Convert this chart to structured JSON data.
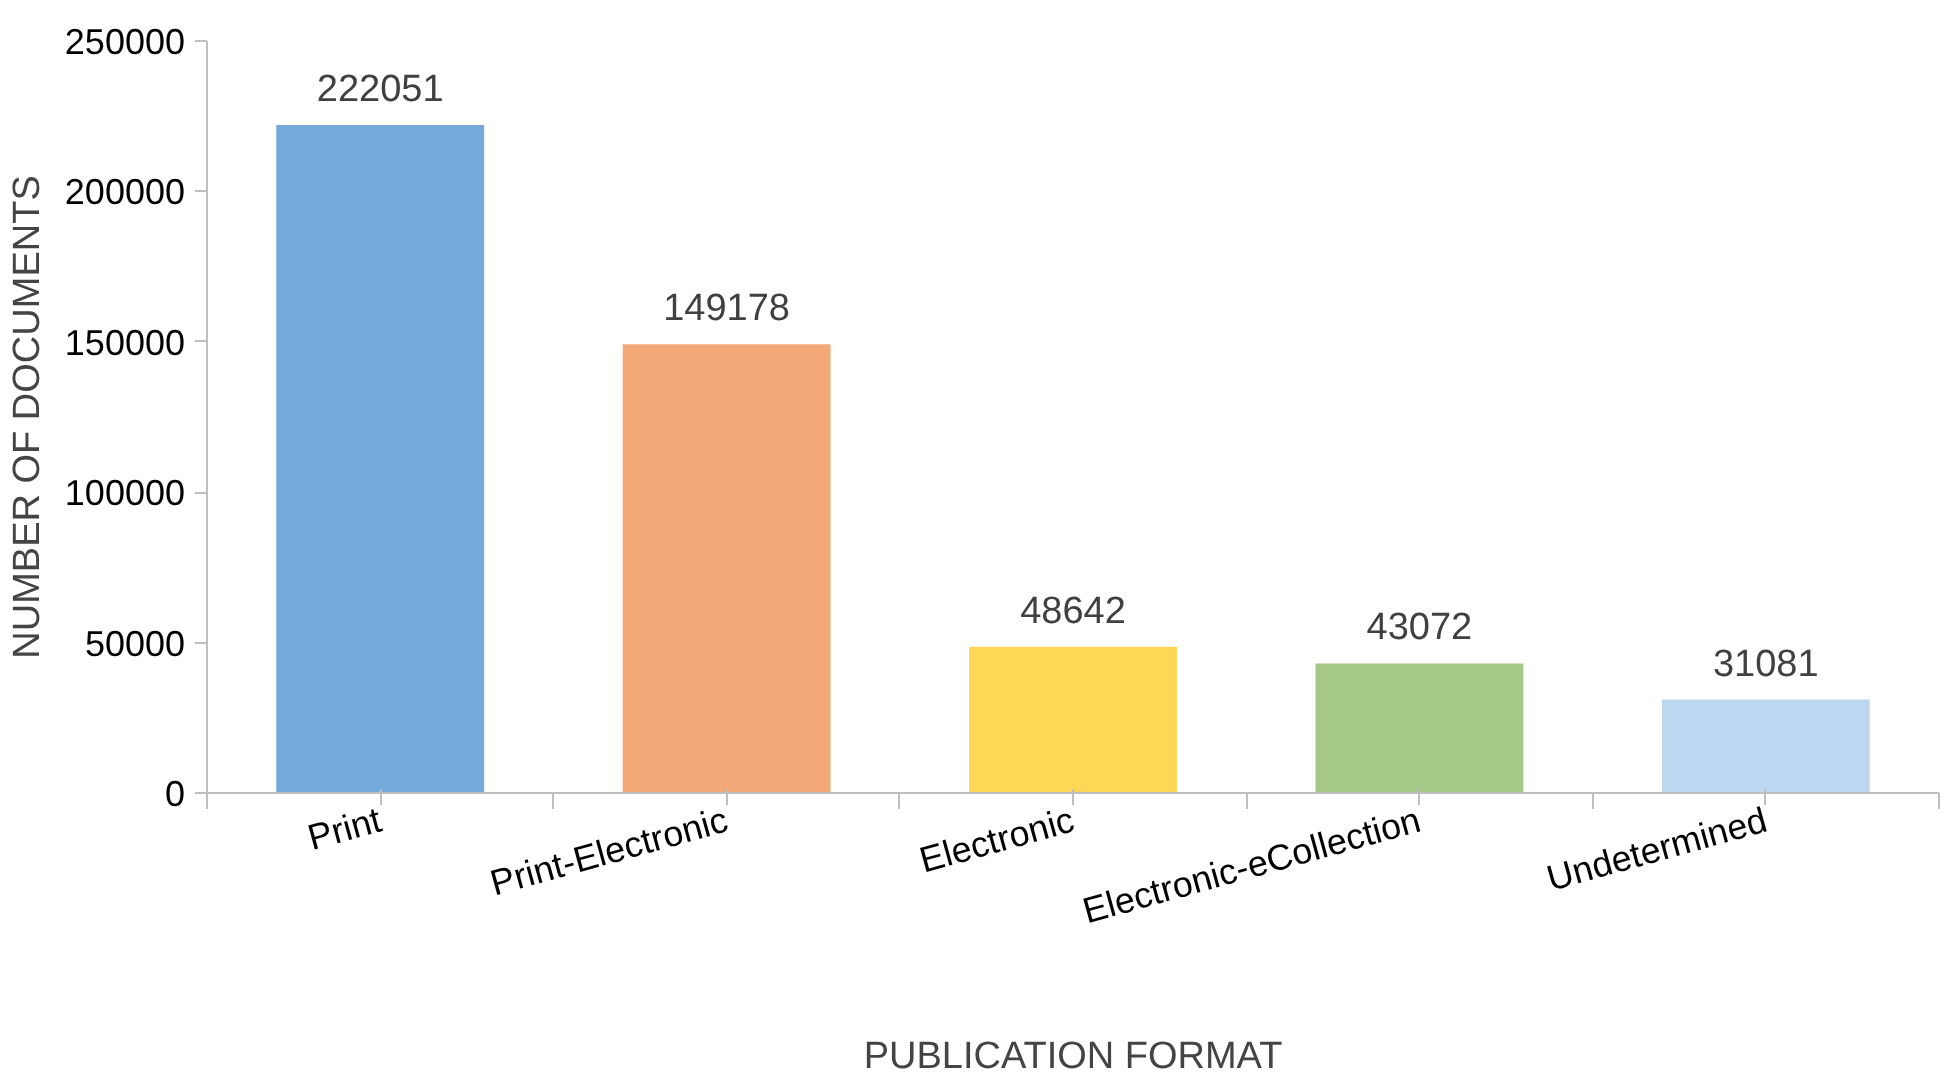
{
  "chart_data": {
    "type": "bar",
    "xlabel": "PUBLICATION FORMAT",
    "ylabel": "NUMBER OF DOCUMENTS",
    "categories": [
      "Print",
      "Print-Electronic",
      "Electronic",
      "Electronic-eCollection",
      "Undetermined"
    ],
    "values": [
      222051,
      149178,
      48642,
      43072,
      31081
    ],
    "colors": [
      "#74a9db",
      "#f3a977",
      "#ffd757",
      "#a5c986",
      "#bcd7ef"
    ],
    "ylim": [
      0,
      250000
    ],
    "yticks": [
      0,
      50000,
      100000,
      150000,
      200000,
      250000
    ],
    "data_labels": true,
    "grid": false
  }
}
